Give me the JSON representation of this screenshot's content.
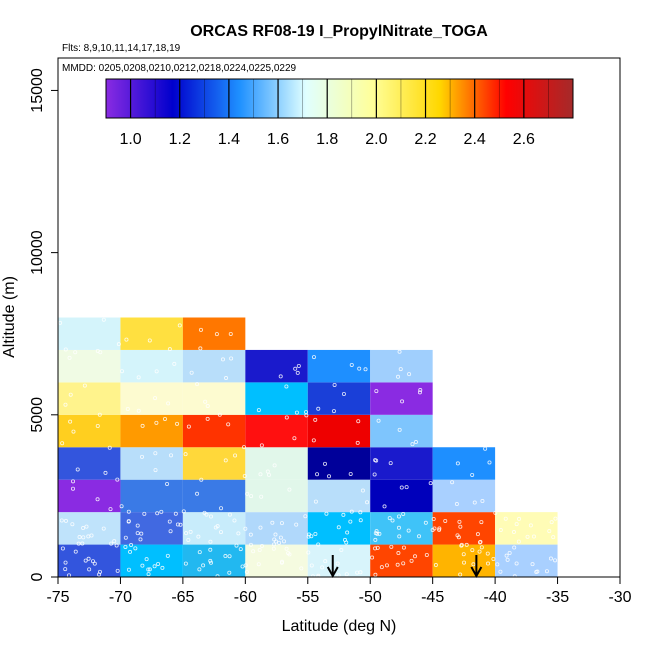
{
  "chart_data": {
    "type": "heatmap",
    "title": "ORCAS RF08-19 I_PropylNitrate_TOGA",
    "flights_note": "Flts: 8,9,10,11,14,17,18,19",
    "dates_note": "MMDD: 0205,0208,0210,0212,0218,0224,0225,0229",
    "xlabel": "Latitude (deg N)",
    "ylabel": "Altitude (m)",
    "xlim": [
      -75,
      -30
    ],
    "ylim": [
      0,
      16000
    ],
    "x_ticks": [
      -75,
      -70,
      -65,
      -60,
      -55,
      -50,
      -45,
      -40,
      -35,
      -30
    ],
    "x_tick_labels": [
      "-75",
      "-70",
      "-65",
      "-60",
      "-55",
      "-50",
      "-45",
      "-40",
      "-35",
      "-30"
    ],
    "y_ticks": [
      0,
      5000,
      10000,
      15000
    ],
    "y_tick_labels": [
      "0",
      "5000",
      "10000",
      "15000"
    ],
    "colorbar": {
      "range": [
        0.9,
        2.8
      ],
      "ticks": [
        1.0,
        1.2,
        1.4,
        1.6,
        1.8,
        2.0,
        2.2,
        2.4,
        2.6
      ],
      "tick_labels": [
        "1.0",
        "1.2",
        "1.4",
        "1.6",
        "1.8",
        "2.0",
        "2.2",
        "2.4",
        "2.6"
      ],
      "colors": [
        "#8a2be2",
        "#0000cd",
        "#1e90ff",
        "#e0ffff",
        "#ffff99",
        "#ffd700",
        "#ff0000",
        "#a52a2a"
      ]
    },
    "bin_width_lat": 5,
    "bin_height_alt": 1000,
    "cells": [
      {
        "lat": -75,
        "alt": 0,
        "color": "#3355dd"
      },
      {
        "lat": -70,
        "alt": 0,
        "color": "#00bfff"
      },
      {
        "lat": -65,
        "alt": 0,
        "color": "#22b8f0"
      },
      {
        "lat": -60,
        "alt": 0,
        "color": "#f5fbe0"
      },
      {
        "lat": -55,
        "alt": 0,
        "color": "#d8f4fb"
      },
      {
        "lat": -50,
        "alt": 0,
        "color": "#ff4500"
      },
      {
        "lat": -45,
        "alt": 0,
        "color": "#ffb400"
      },
      {
        "lat": -40,
        "alt": 0,
        "color": "#a9d0ff"
      },
      {
        "lat": -75,
        "alt": 1000,
        "color": "#bfe3fb"
      },
      {
        "lat": -70,
        "alt": 1000,
        "color": "#4169e1"
      },
      {
        "lat": -65,
        "alt": 1000,
        "color": "#c8ecfb"
      },
      {
        "lat": -60,
        "alt": 1000,
        "color": "#b0d8fb"
      },
      {
        "lat": -55,
        "alt": 1000,
        "color": "#00bfff"
      },
      {
        "lat": -50,
        "alt": 1000,
        "color": "#3fc3f8"
      },
      {
        "lat": -45,
        "alt": 1000,
        "color": "#ff4500"
      },
      {
        "lat": -40,
        "alt": 1000,
        "color": "#fffcb6"
      },
      {
        "lat": -75,
        "alt": 2000,
        "color": "#8a2be2"
      },
      {
        "lat": -70,
        "alt": 2000,
        "color": "#3a7ae6"
      },
      {
        "lat": -65,
        "alt": 2000,
        "color": "#3a7ae6"
      },
      {
        "lat": -60,
        "alt": 2000,
        "color": "#e1f7ea"
      },
      {
        "lat": -55,
        "alt": 2000,
        "color": "#b8defa"
      },
      {
        "lat": -50,
        "alt": 2000,
        "color": "#0000bb"
      },
      {
        "lat": -45,
        "alt": 2000,
        "color": "#a9d0ff"
      },
      {
        "lat": -75,
        "alt": 3000,
        "color": "#3355dd"
      },
      {
        "lat": -70,
        "alt": 3000,
        "color": "#b8defa"
      },
      {
        "lat": -65,
        "alt": 3000,
        "color": "#ffd83a"
      },
      {
        "lat": -60,
        "alt": 3000,
        "color": "#e1f7ea"
      },
      {
        "lat": -55,
        "alt": 3000,
        "color": "#00009a"
      },
      {
        "lat": -50,
        "alt": 3000,
        "color": "#1a1acc"
      },
      {
        "lat": -45,
        "alt": 3000,
        "color": "#1e8fff"
      },
      {
        "lat": -75,
        "alt": 4000,
        "color": "#ffcf1f"
      },
      {
        "lat": -70,
        "alt": 4000,
        "color": "#ff9a00"
      },
      {
        "lat": -65,
        "alt": 4000,
        "color": "#ff3300"
      },
      {
        "lat": -60,
        "alt": 4000,
        "color": "#ff1010"
      },
      {
        "lat": -55,
        "alt": 4000,
        "color": "#ee0000"
      },
      {
        "lat": -50,
        "alt": 4000,
        "color": "#7ec5fd"
      },
      {
        "lat": -75,
        "alt": 5000,
        "color": "#fff38c"
      },
      {
        "lat": -70,
        "alt": 5000,
        "color": "#fdfbd0"
      },
      {
        "lat": -65,
        "alt": 5000,
        "color": "#fdfbd0"
      },
      {
        "lat": -60,
        "alt": 5000,
        "color": "#00bfff"
      },
      {
        "lat": -55,
        "alt": 5000,
        "color": "#1a3fd8"
      },
      {
        "lat": -50,
        "alt": 5000,
        "color": "#8a2be2"
      },
      {
        "lat": -75,
        "alt": 6000,
        "color": "#f0fbe4"
      },
      {
        "lat": -70,
        "alt": 6000,
        "color": "#d4f4fb"
      },
      {
        "lat": -65,
        "alt": 6000,
        "color": "#b8defa"
      },
      {
        "lat": -60,
        "alt": 6000,
        "color": "#1a1acc"
      },
      {
        "lat": -55,
        "alt": 6000,
        "color": "#1e8fff"
      },
      {
        "lat": -50,
        "alt": 6000,
        "color": "#a0cffd"
      },
      {
        "lat": -75,
        "alt": 7000,
        "color": "#d4f4fb"
      },
      {
        "lat": -70,
        "alt": 7000,
        "color": "#ffe040"
      },
      {
        "lat": -65,
        "alt": 7000,
        "color": "#ff7700"
      }
    ],
    "arrows_lat": [
      -53,
      -41.5
    ]
  }
}
